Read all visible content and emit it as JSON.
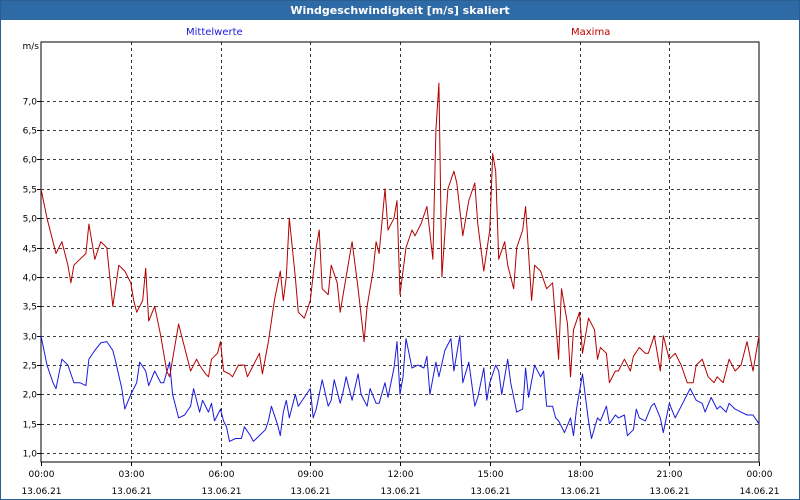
{
  "window": {
    "title": "Windgeschwindigkeit [m/s] skaliert"
  },
  "chart_data": {
    "type": "line",
    "title": "Windgeschwindigkeit [m/s] skaliert",
    "ylabel": "m/s",
    "xlabel": "",
    "ylim": [
      0.85,
      8.0
    ],
    "yticks": [
      1.0,
      1.5,
      2.0,
      2.5,
      3.0,
      3.5,
      4.0,
      4.5,
      5.0,
      5.5,
      6.0,
      6.5,
      7.0
    ],
    "ytick_labels": [
      "1,0",
      "1,5",
      "2,0",
      "2,5",
      "3,0",
      "3,5",
      "4,0",
      "4,5",
      "5,0",
      "5,5",
      "6,0",
      "6,5",
      "7,0"
    ],
    "xlim_hours": [
      0,
      24
    ],
    "xticks": [
      {
        "time": "00:00",
        "date": "13.06.21"
      },
      {
        "time": "03:00",
        "date": "13.06.21"
      },
      {
        "time": "06:00",
        "date": "13.06.21"
      },
      {
        "time": "09:00",
        "date": "13.06.21"
      },
      {
        "time": "12:00",
        "date": "13.06.21"
      },
      {
        "time": "15:00",
        "date": "13.06.21"
      },
      {
        "time": "18:00",
        "date": "13.06.21"
      },
      {
        "time": "21:00",
        "date": "13.06.21"
      },
      {
        "time": "00:00",
        "date": "14.06.21"
      }
    ],
    "grid": true,
    "legend_placement": "top",
    "series": [
      {
        "name": "Mittelwerte",
        "color": "#1a1adc",
        "points": [
          [
            0.0,
            3.0
          ],
          [
            0.2,
            2.5
          ],
          [
            0.4,
            2.2
          ],
          [
            0.5,
            2.1
          ],
          [
            0.7,
            2.6
          ],
          [
            0.9,
            2.5
          ],
          [
            1.1,
            2.2
          ],
          [
            1.3,
            2.2
          ],
          [
            1.5,
            2.15
          ],
          [
            1.6,
            2.6
          ],
          [
            1.8,
            2.75
          ],
          [
            2.0,
            2.88
          ],
          [
            2.2,
            2.9
          ],
          [
            2.4,
            2.75
          ],
          [
            2.5,
            2.55
          ],
          [
            2.7,
            2.1
          ],
          [
            2.8,
            1.75
          ],
          [
            3.0,
            2.0
          ],
          [
            3.2,
            2.2
          ],
          [
            3.3,
            2.55
          ],
          [
            3.5,
            2.4
          ],
          [
            3.6,
            2.15
          ],
          [
            3.8,
            2.4
          ],
          [
            4.0,
            2.2
          ],
          [
            4.1,
            2.2
          ],
          [
            4.3,
            2.55
          ],
          [
            4.4,
            2.0
          ],
          [
            4.6,
            1.6
          ],
          [
            4.8,
            1.65
          ],
          [
            5.0,
            1.8
          ],
          [
            5.1,
            2.1
          ],
          [
            5.3,
            1.7
          ],
          [
            5.4,
            1.9
          ],
          [
            5.6,
            1.7
          ],
          [
            5.7,
            1.85
          ],
          [
            5.8,
            1.55
          ],
          [
            6.0,
            1.75
          ],
          [
            6.1,
            1.55
          ],
          [
            6.2,
            1.45
          ],
          [
            6.3,
            1.2
          ],
          [
            6.5,
            1.25
          ],
          [
            6.7,
            1.25
          ],
          [
            6.8,
            1.45
          ],
          [
            7.0,
            1.3
          ],
          [
            7.1,
            1.2
          ],
          [
            7.3,
            1.3
          ],
          [
            7.5,
            1.4
          ],
          [
            7.6,
            1.55
          ],
          [
            7.7,
            1.8
          ],
          [
            7.9,
            1.5
          ],
          [
            8.0,
            1.3
          ],
          [
            8.1,
            1.7
          ],
          [
            8.2,
            1.9
          ],
          [
            8.3,
            1.6
          ],
          [
            8.5,
            2.0
          ],
          [
            8.6,
            1.8
          ],
          [
            8.8,
            1.95
          ],
          [
            9.0,
            2.1
          ],
          [
            9.1,
            1.6
          ],
          [
            9.2,
            1.75
          ],
          [
            9.4,
            2.25
          ],
          [
            9.6,
            1.8
          ],
          [
            9.7,
            1.9
          ],
          [
            9.8,
            2.25
          ],
          [
            10.0,
            1.85
          ],
          [
            10.1,
            2.05
          ],
          [
            10.2,
            2.3
          ],
          [
            10.4,
            1.9
          ],
          [
            10.6,
            2.35
          ],
          [
            10.7,
            2.0
          ],
          [
            10.9,
            1.8
          ],
          [
            11.0,
            2.1
          ],
          [
            11.2,
            1.85
          ],
          [
            11.3,
            1.85
          ],
          [
            11.5,
            2.2
          ],
          [
            11.6,
            1.95
          ],
          [
            11.8,
            2.45
          ],
          [
            11.9,
            2.9
          ],
          [
            12.0,
            2.0
          ],
          [
            12.1,
            2.3
          ],
          [
            12.2,
            2.95
          ],
          [
            12.4,
            2.45
          ],
          [
            12.6,
            2.5
          ],
          [
            12.8,
            2.45
          ],
          [
            12.9,
            2.65
          ],
          [
            13.0,
            2.0
          ],
          [
            13.2,
            2.55
          ],
          [
            13.3,
            2.3
          ],
          [
            13.5,
            2.75
          ],
          [
            13.7,
            2.95
          ],
          [
            13.8,
            2.4
          ],
          [
            14.0,
            3.0
          ],
          [
            14.1,
            2.2
          ],
          [
            14.3,
            2.55
          ],
          [
            14.5,
            1.8
          ],
          [
            14.6,
            1.95
          ],
          [
            14.8,
            2.45
          ],
          [
            14.9,
            1.9
          ],
          [
            15.0,
            2.2
          ],
          [
            15.2,
            2.5
          ],
          [
            15.3,
            2.4
          ],
          [
            15.4,
            2.0
          ],
          [
            15.6,
            2.6
          ],
          [
            15.7,
            2.2
          ],
          [
            15.9,
            1.7
          ],
          [
            16.1,
            1.75
          ],
          [
            16.2,
            2.45
          ],
          [
            16.3,
            1.95
          ],
          [
            16.5,
            2.5
          ],
          [
            16.7,
            2.3
          ],
          [
            16.8,
            2.4
          ],
          [
            16.9,
            1.8
          ],
          [
            17.1,
            1.8
          ],
          [
            17.2,
            1.6
          ],
          [
            17.3,
            1.55
          ],
          [
            17.5,
            1.35
          ],
          [
            17.7,
            1.6
          ],
          [
            17.8,
            1.3
          ],
          [
            17.9,
            1.75
          ],
          [
            18.1,
            2.35
          ],
          [
            18.3,
            1.55
          ],
          [
            18.4,
            1.25
          ],
          [
            18.6,
            1.6
          ],
          [
            18.7,
            1.55
          ],
          [
            18.9,
            1.8
          ],
          [
            19.0,
            1.5
          ],
          [
            19.2,
            1.65
          ],
          [
            19.3,
            1.6
          ],
          [
            19.5,
            1.65
          ],
          [
            19.6,
            1.3
          ],
          [
            19.8,
            1.4
          ],
          [
            19.9,
            1.75
          ],
          [
            20.0,
            1.6
          ],
          [
            20.2,
            1.55
          ],
          [
            20.4,
            1.8
          ],
          [
            20.5,
            1.85
          ],
          [
            20.7,
            1.6
          ],
          [
            20.8,
            1.35
          ],
          [
            21.0,
            1.85
          ],
          [
            21.2,
            1.6
          ],
          [
            21.4,
            1.8
          ],
          [
            21.6,
            2.0
          ],
          [
            21.7,
            2.1
          ],
          [
            21.9,
            1.9
          ],
          [
            22.1,
            1.85
          ],
          [
            22.2,
            1.7
          ],
          [
            22.4,
            1.95
          ],
          [
            22.6,
            1.75
          ],
          [
            22.7,
            1.8
          ],
          [
            22.9,
            1.7
          ],
          [
            23.0,
            1.85
          ],
          [
            23.2,
            1.75
          ],
          [
            23.4,
            1.7
          ],
          [
            23.6,
            1.65
          ],
          [
            23.8,
            1.65
          ],
          [
            24.0,
            1.5
          ]
        ]
      },
      {
        "name": "Maxima",
        "color": "#b40000",
        "points": [
          [
            0.0,
            5.5
          ],
          [
            0.2,
            5.0
          ],
          [
            0.4,
            4.6
          ],
          [
            0.5,
            4.4
          ],
          [
            0.7,
            4.6
          ],
          [
            0.9,
            4.2
          ],
          [
            1.0,
            3.9
          ],
          [
            1.1,
            4.2
          ],
          [
            1.3,
            4.3
          ],
          [
            1.5,
            4.4
          ],
          [
            1.6,
            4.9
          ],
          [
            1.8,
            4.3
          ],
          [
            2.0,
            4.6
          ],
          [
            2.2,
            4.5
          ],
          [
            2.4,
            3.5
          ],
          [
            2.5,
            3.85
          ],
          [
            2.6,
            4.2
          ],
          [
            2.8,
            4.1
          ],
          [
            3.0,
            3.9
          ],
          [
            3.1,
            3.6
          ],
          [
            3.2,
            3.4
          ],
          [
            3.4,
            3.6
          ],
          [
            3.5,
            4.15
          ],
          [
            3.6,
            3.25
          ],
          [
            3.8,
            3.5
          ],
          [
            4.0,
            3.0
          ],
          [
            4.2,
            2.4
          ],
          [
            4.3,
            2.3
          ],
          [
            4.4,
            2.6
          ],
          [
            4.6,
            3.2
          ],
          [
            4.7,
            3.0
          ],
          [
            4.9,
            2.6
          ],
          [
            5.0,
            2.4
          ],
          [
            5.2,
            2.6
          ],
          [
            5.3,
            2.5
          ],
          [
            5.5,
            2.35
          ],
          [
            5.6,
            2.3
          ],
          [
            5.7,
            2.6
          ],
          [
            5.9,
            2.7
          ],
          [
            6.0,
            2.9
          ],
          [
            6.1,
            2.4
          ],
          [
            6.3,
            2.35
          ],
          [
            6.4,
            2.3
          ],
          [
            6.6,
            2.5
          ],
          [
            6.8,
            2.5
          ],
          [
            6.9,
            2.3
          ],
          [
            7.1,
            2.5
          ],
          [
            7.3,
            2.7
          ],
          [
            7.4,
            2.35
          ],
          [
            7.6,
            2.9
          ],
          [
            7.8,
            3.6
          ],
          [
            8.0,
            4.1
          ],
          [
            8.1,
            3.6
          ],
          [
            8.2,
            4.0
          ],
          [
            8.3,
            5.0
          ],
          [
            8.5,
            4.0
          ],
          [
            8.6,
            3.4
          ],
          [
            8.8,
            3.3
          ],
          [
            9.0,
            3.6
          ],
          [
            9.2,
            4.5
          ],
          [
            9.3,
            4.8
          ],
          [
            9.4,
            3.8
          ],
          [
            9.6,
            3.7
          ],
          [
            9.7,
            4.2
          ],
          [
            9.9,
            3.9
          ],
          [
            10.0,
            3.4
          ],
          [
            10.2,
            4.0
          ],
          [
            10.3,
            4.3
          ],
          [
            10.4,
            4.6
          ],
          [
            10.6,
            3.8
          ],
          [
            10.8,
            2.9
          ],
          [
            10.9,
            3.5
          ],
          [
            11.1,
            4.1
          ],
          [
            11.2,
            4.6
          ],
          [
            11.3,
            4.4
          ],
          [
            11.5,
            5.5
          ],
          [
            11.6,
            4.8
          ],
          [
            11.8,
            5.0
          ],
          [
            11.9,
            5.3
          ],
          [
            12.0,
            3.7
          ],
          [
            12.2,
            4.5
          ],
          [
            12.4,
            4.8
          ],
          [
            12.5,
            4.7
          ],
          [
            12.7,
            4.9
          ],
          [
            12.9,
            5.2
          ],
          [
            13.1,
            4.3
          ],
          [
            13.2,
            6.5
          ],
          [
            13.3,
            7.3
          ],
          [
            13.4,
            4.0
          ],
          [
            13.6,
            5.5
          ],
          [
            13.8,
            5.8
          ],
          [
            13.9,
            5.6
          ],
          [
            14.1,
            4.7
          ],
          [
            14.2,
            5.0
          ],
          [
            14.3,
            5.3
          ],
          [
            14.5,
            5.6
          ],
          [
            14.6,
            4.9
          ],
          [
            14.8,
            4.1
          ],
          [
            15.0,
            4.8
          ],
          [
            15.1,
            6.1
          ],
          [
            15.2,
            5.8
          ],
          [
            15.3,
            4.3
          ],
          [
            15.5,
            4.6
          ],
          [
            15.6,
            4.2
          ],
          [
            15.8,
            3.8
          ],
          [
            15.9,
            4.5
          ],
          [
            16.1,
            4.8
          ],
          [
            16.2,
            5.2
          ],
          [
            16.3,
            4.4
          ],
          [
            16.4,
            3.6
          ],
          [
            16.5,
            4.2
          ],
          [
            16.7,
            4.1
          ],
          [
            16.9,
            3.8
          ],
          [
            17.1,
            3.9
          ],
          [
            17.3,
            2.6
          ],
          [
            17.4,
            3.8
          ],
          [
            17.6,
            3.2
          ],
          [
            17.7,
            2.3
          ],
          [
            17.8,
            3.1
          ],
          [
            18.0,
            3.4
          ],
          [
            18.1,
            2.7
          ],
          [
            18.3,
            3.3
          ],
          [
            18.5,
            3.1
          ],
          [
            18.6,
            2.6
          ],
          [
            18.7,
            2.8
          ],
          [
            18.9,
            2.7
          ],
          [
            19.0,
            2.2
          ],
          [
            19.2,
            2.4
          ],
          [
            19.3,
            2.4
          ],
          [
            19.5,
            2.6
          ],
          [
            19.7,
            2.4
          ],
          [
            19.8,
            2.65
          ],
          [
            20.0,
            2.8
          ],
          [
            20.2,
            2.7
          ],
          [
            20.3,
            2.7
          ],
          [
            20.5,
            3.0
          ],
          [
            20.7,
            2.4
          ],
          [
            20.8,
            3.0
          ],
          [
            21.0,
            2.6
          ],
          [
            21.2,
            2.7
          ],
          [
            21.4,
            2.5
          ],
          [
            21.6,
            2.2
          ],
          [
            21.8,
            2.2
          ],
          [
            21.9,
            2.5
          ],
          [
            22.1,
            2.6
          ],
          [
            22.3,
            2.3
          ],
          [
            22.5,
            2.2
          ],
          [
            22.6,
            2.3
          ],
          [
            22.8,
            2.2
          ],
          [
            22.9,
            2.4
          ],
          [
            23.0,
            2.6
          ],
          [
            23.2,
            2.4
          ],
          [
            23.4,
            2.5
          ],
          [
            23.6,
            2.9
          ],
          [
            23.8,
            2.4
          ],
          [
            24.0,
            3.0
          ]
        ]
      }
    ]
  }
}
